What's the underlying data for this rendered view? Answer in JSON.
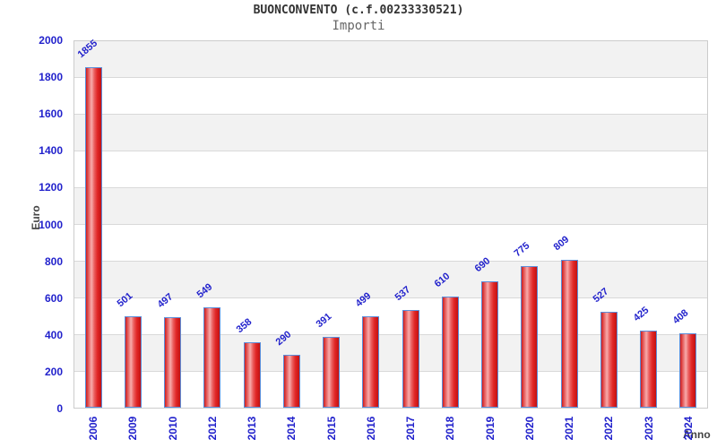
{
  "header": {
    "title": "BUONCONVENTO (c.f.00233330521)",
    "subtitle": "Importi"
  },
  "chart_data": {
    "type": "bar",
    "title": "BUONCONVENTO (c.f.00233330521)",
    "subtitle": "Importi",
    "xlabel": "Anno",
    "ylabel": "Euro",
    "categories": [
      "2006",
      "2009",
      "2010",
      "2012",
      "2013",
      "2014",
      "2015",
      "2016",
      "2017",
      "2018",
      "2019",
      "2020",
      "2021",
      "2022",
      "2023",
      "2024"
    ],
    "values": [
      1855,
      501,
      497,
      549,
      358,
      290,
      391,
      499,
      537,
      610,
      690,
      775,
      809,
      527,
      425,
      408
    ],
    "ylim": [
      0,
      2000
    ],
    "ytick_step": 200,
    "grid": "horizontal-bands-alternating",
    "legend": "none",
    "colors": {
      "bar_fill_edge": "#cf1d1d",
      "bar_fill_highlight": "#f7abab",
      "bar_border": "#5b8dd9",
      "tick_label": "#2222cc",
      "value_label": "#2222cc",
      "axis_title": "#444444",
      "band_gray": "#f2f2f2",
      "band_white": "#ffffff",
      "gridline": "#d9d9d9",
      "plot_border": "#cccccc",
      "title_color": "#333333",
      "subtitle_color": "#666666"
    }
  }
}
